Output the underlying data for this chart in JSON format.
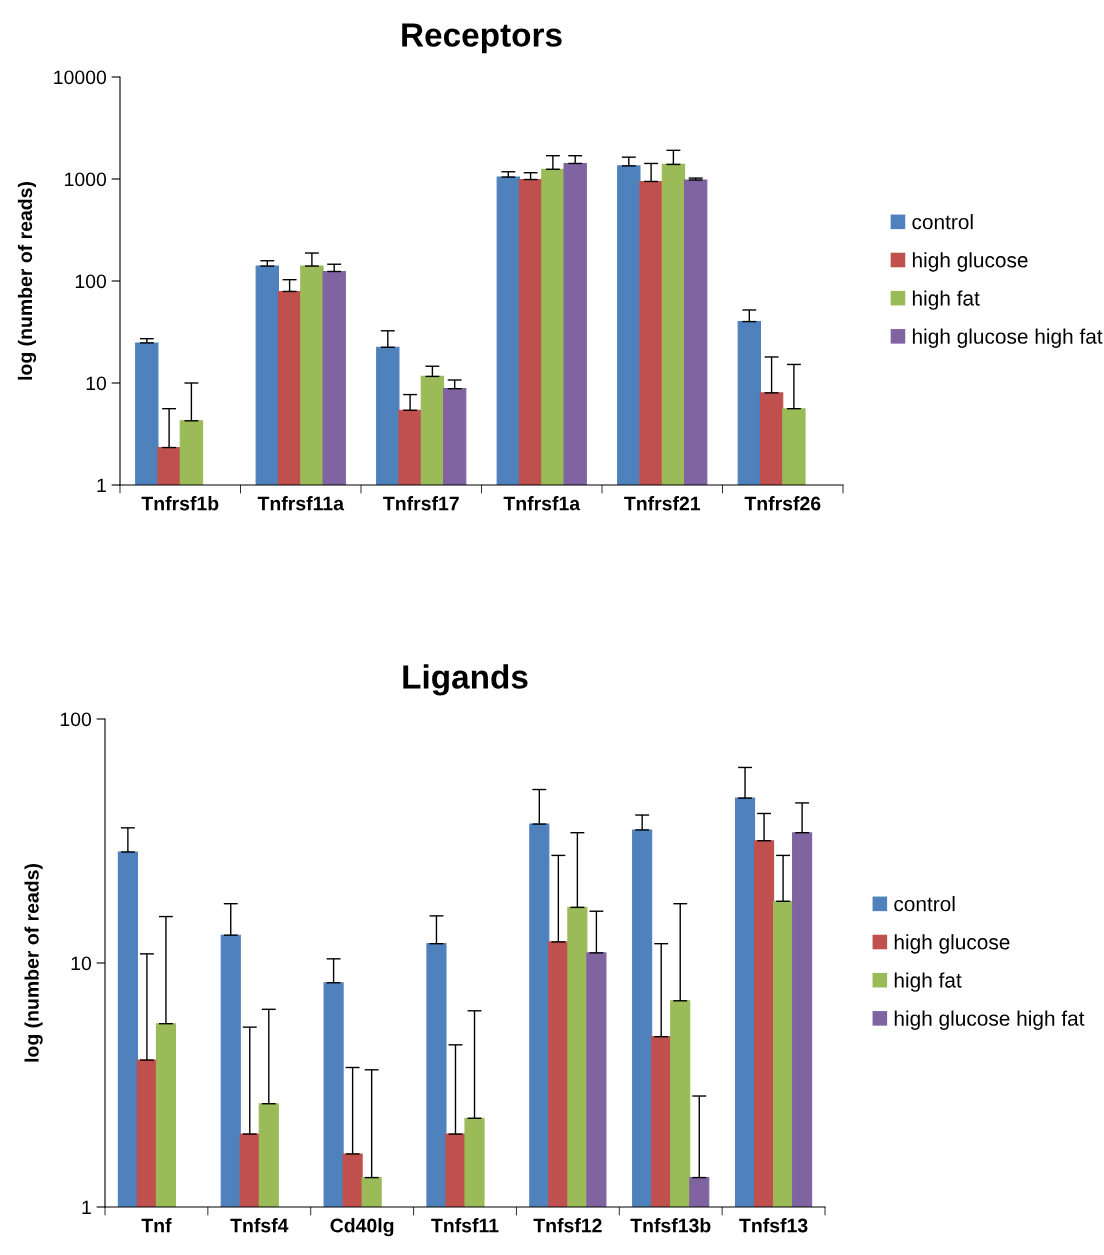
{
  "chart_data": [
    {
      "type": "bar",
      "title": "Receptors",
      "ylabel": "log (number of reads)",
      "log": true,
      "ylim": [
        1,
        10000
      ],
      "yticks": [
        1,
        10,
        100,
        1000,
        10000
      ],
      "grid": false,
      "legend": "right",
      "categories": [
        "Tnfrsf1b",
        "Tnfrsf11a",
        "Tnfrsf17",
        "Tnfrsf1a",
        "Tnfrsf21",
        "Tnfrsf26"
      ],
      "series": [
        {
          "name": "control",
          "color": "#4f81bd",
          "values": [
            24.7,
            140,
            22.4,
            1044,
            1344,
            40
          ],
          "errors": [
            [
              24.7,
              27.2
            ],
            [
              140,
              158
            ],
            [
              22.4,
              32.5
            ],
            [
              1044,
              1178
            ],
            [
              1344,
              1637
            ],
            [
              40,
              52
            ]
          ]
        },
        {
          "name": "high glucose",
          "color": "#c0504d",
          "values": [
            2.33,
            79,
            5.4,
            988,
            946,
            8.0
          ],
          "errors": [
            [
              2.33,
              5.6
            ],
            [
              79,
              103
            ],
            [
              5.4,
              7.7
            ],
            [
              988,
              1152
            ],
            [
              946,
              1420
            ],
            [
              8.0,
              18
            ]
          ]
        },
        {
          "name": "high fat",
          "color": "#9bbb59",
          "values": [
            4.26,
            140,
            11.6,
            1245,
            1390,
            5.6
          ],
          "errors": [
            [
              4.26,
              10
            ],
            [
              140,
              188
            ],
            [
              11.6,
              14.6
            ],
            [
              1245,
              1692
            ],
            [
              1390,
              1910
            ],
            [
              5.6,
              15.2
            ]
          ]
        },
        {
          "name": "high glucose high fat",
          "color": "#8064a2",
          "values": [
            null,
            124,
            8.8,
            1420,
            977,
            null
          ],
          "errors": [
            null,
            [
              124,
              146
            ],
            [
              8.8,
              10.7
            ],
            [
              1420,
              1692
            ],
            [
              977,
              1021
            ],
            null
          ]
        }
      ]
    },
    {
      "type": "bar",
      "title": "Ligands",
      "ylabel": "log (number of reads)",
      "log": true,
      "ylim": [
        1,
        100
      ],
      "yticks": [
        1,
        10,
        100
      ],
      "grid": false,
      "legend": "right",
      "categories": [
        "Tnf",
        "Tnfsf4",
        "Cd40lg",
        "Tnfsf11",
        "Tnfsf12",
        "Tnfsf13b",
        "Tnfsf13"
      ],
      "series": [
        {
          "name": "control",
          "color": "#4f81bd",
          "values": [
            28.5,
            13.0,
            8.3,
            12.0,
            37.1,
            35.1,
            47.4
          ],
          "errors": [
            [
              28.5,
              35.8
            ],
            [
              13.0,
              17.5
            ],
            [
              8.3,
              10.4
            ],
            [
              12.0,
              15.6
            ],
            [
              37.1,
              51.4
            ],
            [
              35.1,
              40.4
            ],
            [
              47.4,
              63.3
            ]
          ]
        },
        {
          "name": "high glucose",
          "color": "#c0504d",
          "values": [
            4.0,
            1.99,
            1.65,
            1.99,
            12.2,
            4.99,
            31.7
          ],
          "errors": [
            [
              4.0,
              10.9
            ],
            [
              1.99,
              5.46
            ],
            [
              1.65,
              3.73
            ],
            [
              1.99,
              4.62
            ],
            [
              12.2,
              27.6
            ],
            [
              4.99,
              12.0
            ],
            [
              31.7,
              41.0
            ]
          ]
        },
        {
          "name": "high fat",
          "color": "#9bbb59",
          "values": [
            5.64,
            2.65,
            1.32,
            2.31,
            16.9,
            7.0,
            17.9
          ],
          "errors": [
            [
              5.64,
              15.5
            ],
            [
              2.65,
              6.46
            ],
            [
              1.32,
              3.65
            ],
            [
              2.31,
              6.37
            ],
            [
              16.9,
              34.2
            ],
            [
              7.0,
              17.5
            ],
            [
              17.9,
              27.6
            ]
          ]
        },
        {
          "name": "high glucose high fat",
          "color": "#8064a2",
          "values": [
            null,
            null,
            null,
            null,
            11.0,
            1.32,
            34.2
          ],
          "errors": [
            null,
            null,
            null,
            null,
            [
              11.0,
              16.3
            ],
            [
              1.32,
              2.85
            ],
            [
              34.2,
              45.3
            ]
          ]
        }
      ]
    }
  ]
}
